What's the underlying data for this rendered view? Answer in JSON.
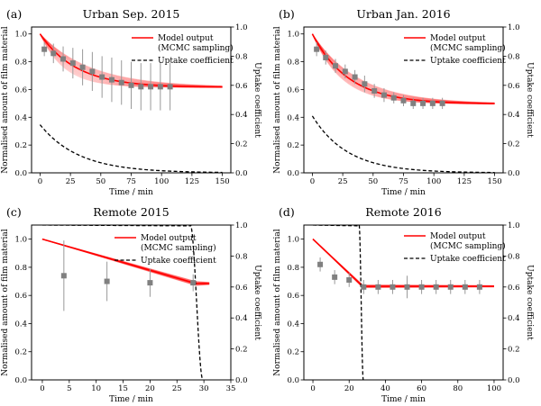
{
  "chart_data": [
    {
      "type": "line",
      "panel_label": "(a)",
      "title": "Urban Sep. 2015",
      "xlabel": "Time / min",
      "ylabel": "Normalised amount of film material",
      "y2label": "Uptake coefficient",
      "xlim": [
        -7,
        157
      ],
      "ylim": [
        0.0,
        1.05
      ],
      "y2lim": [
        0.0,
        1.0
      ],
      "xticks": [
        0,
        25,
        50,
        75,
        100,
        125,
        150
      ],
      "yticks": [
        0.0,
        0.2,
        0.4,
        0.6,
        0.8,
        1.0
      ],
      "y2ticks": [
        0.0,
        0.2,
        0.4,
        0.6,
        0.8,
        1.0
      ],
      "legend": {
        "placement": "upper-right",
        "entries": [
          "Model output\n(MCMC sampling)",
          "Uptake coefficient"
        ]
      },
      "observations": {
        "x": [
          3.5,
          11,
          19,
          27,
          35,
          43,
          51,
          59,
          67,
          75,
          83,
          91,
          99,
          107
        ],
        "y": [
          0.89,
          0.86,
          0.82,
          0.79,
          0.76,
          0.73,
          0.69,
          0.67,
          0.65,
          0.63,
          0.62,
          0.62,
          0.62,
          0.62
        ],
        "err": [
          0.05,
          0.07,
          0.09,
          0.11,
          0.13,
          0.14,
          0.15,
          0.16,
          0.16,
          0.17,
          0.17,
          0.17,
          0.17,
          0.17
        ]
      },
      "model": {
        "type": "exponential",
        "y0": 1.0,
        "asymptote": 0.615,
        "tau_min": 30,
        "tau_spread": [
          20,
          42
        ],
        "x_range": [
          0,
          150
        ]
      },
      "uptake": {
        "type": "exponential",
        "y0": 0.33,
        "tau_min": 32,
        "x_range": [
          0,
          150
        ]
      }
    },
    {
      "type": "line",
      "panel_label": "(b)",
      "title": "Urban Jan. 2016",
      "xlabel": "Time / min",
      "ylabel": "Normalised amount of film material",
      "y2label": "Uptake coefficient",
      "xlim": [
        -7,
        157
      ],
      "ylim": [
        0.0,
        1.05
      ],
      "y2lim": [
        0.0,
        1.0
      ],
      "xticks": [
        0,
        25,
        50,
        75,
        100,
        125,
        150
      ],
      "yticks": [
        0.0,
        0.2,
        0.4,
        0.6,
        0.8,
        1.0
      ],
      "y2ticks": [
        0.0,
        0.2,
        0.4,
        0.6,
        0.8,
        1.0
      ],
      "legend": {
        "placement": "upper-right",
        "entries": [
          "Model output\n(MCMC sampling)",
          "Uptake coefficient"
        ]
      },
      "observations": {
        "x": [
          3.5,
          11,
          19,
          27,
          35,
          43,
          51,
          59,
          67,
          75,
          83,
          91,
          99,
          107
        ],
        "y": [
          0.89,
          0.83,
          0.77,
          0.73,
          0.69,
          0.64,
          0.59,
          0.56,
          0.54,
          0.52,
          0.5,
          0.5,
          0.5,
          0.5
        ],
        "err": [
          0.05,
          0.05,
          0.05,
          0.05,
          0.05,
          0.06,
          0.05,
          0.05,
          0.04,
          0.04,
          0.04,
          0.04,
          0.04,
          0.04
        ]
      },
      "model": {
        "type": "exponential",
        "y0": 1.0,
        "asymptote": 0.495,
        "tau_min": 30,
        "tau_spread": [
          24,
          38
        ],
        "x_range": [
          0,
          150
        ]
      },
      "uptake": {
        "type": "exponential",
        "y0": 0.39,
        "tau_min": 29,
        "x_range": [
          0,
          150
        ]
      }
    },
    {
      "type": "line",
      "panel_label": "(c)",
      "title": "Remote 2015",
      "xlabel": "Time / min",
      "ylabel": "Normalised amount of film material",
      "y2label": "Uptake coefficient",
      "xlim": [
        -2,
        35
      ],
      "ylim": [
        0.0,
        1.1
      ],
      "y2lim": [
        0.0,
        1.0
      ],
      "xticks": [
        0,
        5,
        10,
        15,
        20,
        25,
        30,
        35
      ],
      "yticks": [
        0.0,
        0.2,
        0.4,
        0.6,
        0.8,
        1.0
      ],
      "y2ticks": [
        0.0,
        0.2,
        0.4,
        0.6,
        0.8,
        1.0
      ],
      "legend": {
        "placement": "upper-center",
        "entries": [
          "Model output\n(MCMC sampling)",
          "Uptake coefficient"
        ]
      },
      "observations": {
        "x": [
          4,
          12,
          20,
          28
        ],
        "y": [
          0.74,
          0.7,
          0.69,
          0.69
        ],
        "err": [
          0.25,
          0.14,
          0.1,
          0.06
        ]
      },
      "model": {
        "type": "piecewise",
        "points": [
          [
            0,
            1.0
          ],
          [
            28.5,
            0.685
          ],
          [
            31,
            0.685
          ]
        ],
        "spread": 0.015
      },
      "uptake": {
        "type": "drop",
        "level": 1.0,
        "drop_start": 27.5,
        "drop_end": 29.8,
        "x_range": [
          0,
          30
        ]
      }
    },
    {
      "type": "line",
      "panel_label": "(d)",
      "title": "Remote 2016",
      "xlabel": "Time / min",
      "ylabel": "Normalised amount of film material",
      "y2label": "Uptake coefficient",
      "xlim": [
        -5,
        105
      ],
      "ylim": [
        0.0,
        1.1
      ],
      "y2lim": [
        0.0,
        1.0
      ],
      "xticks": [
        0,
        20,
        40,
        60,
        80,
        100
      ],
      "yticks": [
        0.0,
        0.2,
        0.4,
        0.6,
        0.8,
        1.0
      ],
      "y2ticks": [
        0.0,
        0.2,
        0.4,
        0.6,
        0.8,
        1.0
      ],
      "legend": {
        "placement": "upper-right",
        "entries": [
          "Model output\n(MCMC sampling)",
          "Uptake coefficient"
        ]
      },
      "observations": {
        "x": [
          4,
          12,
          20,
          28,
          36,
          44,
          52,
          60,
          68,
          76,
          84,
          92
        ],
        "y": [
          0.82,
          0.73,
          0.71,
          0.66,
          0.66,
          0.66,
          0.66,
          0.66,
          0.66,
          0.66,
          0.66,
          0.66
        ],
        "err": [
          0.05,
          0.05,
          0.05,
          0.05,
          0.05,
          0.05,
          0.08,
          0.05,
          0.05,
          0.05,
          0.05,
          0.05
        ]
      },
      "model": {
        "type": "piecewise",
        "points": [
          [
            0,
            1.0
          ],
          [
            27.5,
            0.665
          ],
          [
            100,
            0.665
          ]
        ],
        "spread": 0.01
      },
      "uptake": {
        "type": "drop",
        "level": 1.0,
        "drop_start": 25.5,
        "drop_end": 27.8,
        "x_range": [
          0,
          28
        ]
      }
    }
  ],
  "colors": {
    "model": "#ff0000",
    "uptake": "#000000",
    "observation": "#808080",
    "errorbar": "#999999"
  }
}
